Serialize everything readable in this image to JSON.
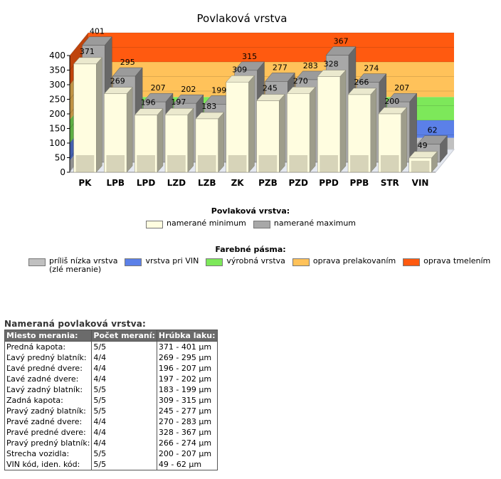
{
  "chart_data": {
    "type": "bar",
    "title": "Povlaková vrstva",
    "categories": [
      "PK",
      "LPB",
      "LPD",
      "LZD",
      "LZB",
      "ZK",
      "PZB",
      "PZD",
      "PPD",
      "PPB",
      "STR",
      "VIN"
    ],
    "series": [
      {
        "name": "namerané minimum",
        "values": [
          371,
          269,
          196,
          197,
          183,
          309,
          245,
          270,
          328,
          266,
          200,
          49
        ],
        "color": "#fffde0"
      },
      {
        "name": "namerané maximum",
        "values": [
          401,
          295,
          207,
          202,
          199,
          315,
          277,
          283,
          367,
          274,
          207,
          62
        ],
        "color": "#a8a8a8"
      }
    ],
    "ylim": [
      0,
      400
    ],
    "yticks": [
      0,
      50,
      100,
      150,
      200,
      250,
      300,
      350,
      400
    ],
    "bands": [
      {
        "name": "príliš nízka vrstva (zlé meranie)",
        "from": 0,
        "to": 40,
        "color": "#c0c0c0"
      },
      {
        "name": "vrstva pri VIN",
        "from": 40,
        "to": 100,
        "color": "#5b80e8"
      },
      {
        "name": "výrobná vrstva",
        "from": 100,
        "to": 180,
        "color": "#7de85a"
      },
      {
        "name": "oprava prelakovaním",
        "from": 180,
        "to": 300,
        "color": "#ffc25a"
      },
      {
        "name": "oprava tmelením",
        "from": 300,
        "to": 400,
        "color": "#ff5a10"
      }
    ],
    "legend_placement": "bottom"
  },
  "legend1": {
    "title": "Povlaková vrstva:",
    "items": [
      {
        "label": "namerané minimum",
        "color": "#fffde0"
      },
      {
        "label": "namerané maximum",
        "color": "#a8a8a8"
      }
    ]
  },
  "legend2": {
    "title": "Farebné pásma:",
    "items": [
      {
        "label": "príliš nízka vrstva",
        "label2": "(zlé meranie)",
        "color": "#c0c0c0"
      },
      {
        "label": "vrstva pri VIN",
        "color": "#5b80e8"
      },
      {
        "label": "výrobná vrstva",
        "color": "#7de85a"
      },
      {
        "label": "oprava prelakovaním",
        "color": "#ffc25a"
      },
      {
        "label": "oprava tmelením",
        "color": "#ff5a10"
      }
    ]
  },
  "table": {
    "title": "Nameraná povlaková vrstva:",
    "headers": [
      "Miesto merania:",
      "Počet meraní:",
      "Hrúbka laku:"
    ],
    "rows": [
      [
        "Predná kapota:",
        "5/5",
        "371 - 401 µm"
      ],
      [
        "Ľavý predný blatník:",
        "4/4",
        "269 - 295 µm"
      ],
      [
        "Ľavé predné dvere:",
        "4/4",
        "196 - 207 µm"
      ],
      [
        "Ľavé zadné dvere:",
        "4/4",
        "197 - 202 µm"
      ],
      [
        "Ľavý zadný blatník:",
        "5/5",
        "183 - 199 µm"
      ],
      [
        "Zadná kapota:",
        "5/5",
        "309 - 315 µm"
      ],
      [
        "Pravý zadný blatník:",
        "5/5",
        "245 - 277 µm"
      ],
      [
        "Pravé zadné dvere:",
        "4/4",
        "270 - 283 µm"
      ],
      [
        "Pravé predné dvere:",
        "4/4",
        "328 - 367 µm"
      ],
      [
        "Pravý predný blatník:",
        "4/4",
        "266 - 274 µm"
      ],
      [
        "Strecha vozidla:",
        "5/5",
        "200 - 207 µm"
      ],
      [
        "VIN kód, iden. kód:",
        "5/5",
        "49 - 62 µm"
      ]
    ]
  }
}
